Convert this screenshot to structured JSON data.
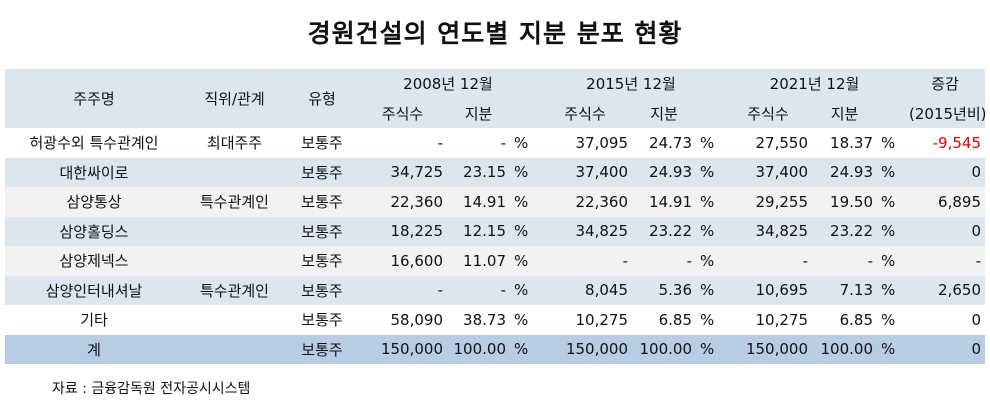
{
  "title": "경원건설의 연도별 지분 분포 현황",
  "header": {
    "shareholder": "주주명",
    "position": "직위/관계",
    "type": "유형",
    "period1": "2008년 12월",
    "period2": "2015년 12월",
    "period3": "2021년 12월",
    "change": "증감",
    "change_sub": "(2015년비)",
    "shares": "주식수",
    "stake": "지분"
  },
  "rows": [
    {
      "name": "허광수외 특수관계인",
      "position": "최대주주",
      "type": "보통주",
      "s2008": "-",
      "p2008": "-",
      "u2008": "%",
      "s2015": "37,095",
      "p2015": "24.73",
      "u2015": "%",
      "s2021": "27,550",
      "p2021": "18.37",
      "u2021": "%",
      "change": "-9,545",
      "negative": true
    },
    {
      "name": "대한싸이로",
      "position": "",
      "type": "보통주",
      "s2008": "34,725",
      "p2008": "23.15",
      "u2008": "%",
      "s2015": "37,400",
      "p2015": "24.93",
      "u2015": "%",
      "s2021": "37,400",
      "p2021": "24.93",
      "u2021": "%",
      "change": "0"
    },
    {
      "name": "삼양통상",
      "position": "특수관계인",
      "type": "보통주",
      "s2008": "22,360",
      "p2008": "14.91",
      "u2008": "%",
      "s2015": "22,360",
      "p2015": "14.91",
      "u2015": "%",
      "s2021": "29,255",
      "p2021": "19.50",
      "u2021": "%",
      "change": "6,895"
    },
    {
      "name": "삼양홀딩스",
      "position": "",
      "type": "보통주",
      "s2008": "18,225",
      "p2008": "12.15",
      "u2008": "%",
      "s2015": "34,825",
      "p2015": "23.22",
      "u2015": "%",
      "s2021": "34,825",
      "p2021": "23.22",
      "u2021": "%",
      "change": "0"
    },
    {
      "name": "삼양제넥스",
      "position": "",
      "type": "보통주",
      "s2008": "16,600",
      "p2008": "11.07",
      "u2008": "%",
      "s2015": "-",
      "p2015": "-",
      "u2015": "%",
      "s2021": "-",
      "p2021": "-",
      "u2021": "%",
      "change": "-"
    },
    {
      "name": "삼양인터내셔날",
      "position": "특수관계인",
      "type": "보통주",
      "s2008": "-",
      "p2008": "-",
      "u2008": "%",
      "s2015": "8,045",
      "p2015": "5.36",
      "u2015": "%",
      "s2021": "10,695",
      "p2021": "7.13",
      "u2021": "%",
      "change": "2,650"
    },
    {
      "name": "기타",
      "position": "",
      "type": "보통주",
      "s2008": "58,090",
      "p2008": "38.73",
      "u2008": "%",
      "s2015": "10,275",
      "p2015": "6.85",
      "u2015": "%",
      "s2021": "10,275",
      "p2021": "6.85",
      "u2021": "%",
      "change": "0"
    }
  ],
  "total": {
    "name": "계",
    "type": "보통주",
    "s2008": "150,000",
    "p2008": "100.00",
    "u2008": "%",
    "s2015": "150,000",
    "p2015": "100.00",
    "u2015": "%",
    "s2021": "150,000",
    "p2021": "100.00",
    "u2021": "%",
    "change": "0"
  },
  "source": "자료 : 금융감독원 전자공시시스템"
}
